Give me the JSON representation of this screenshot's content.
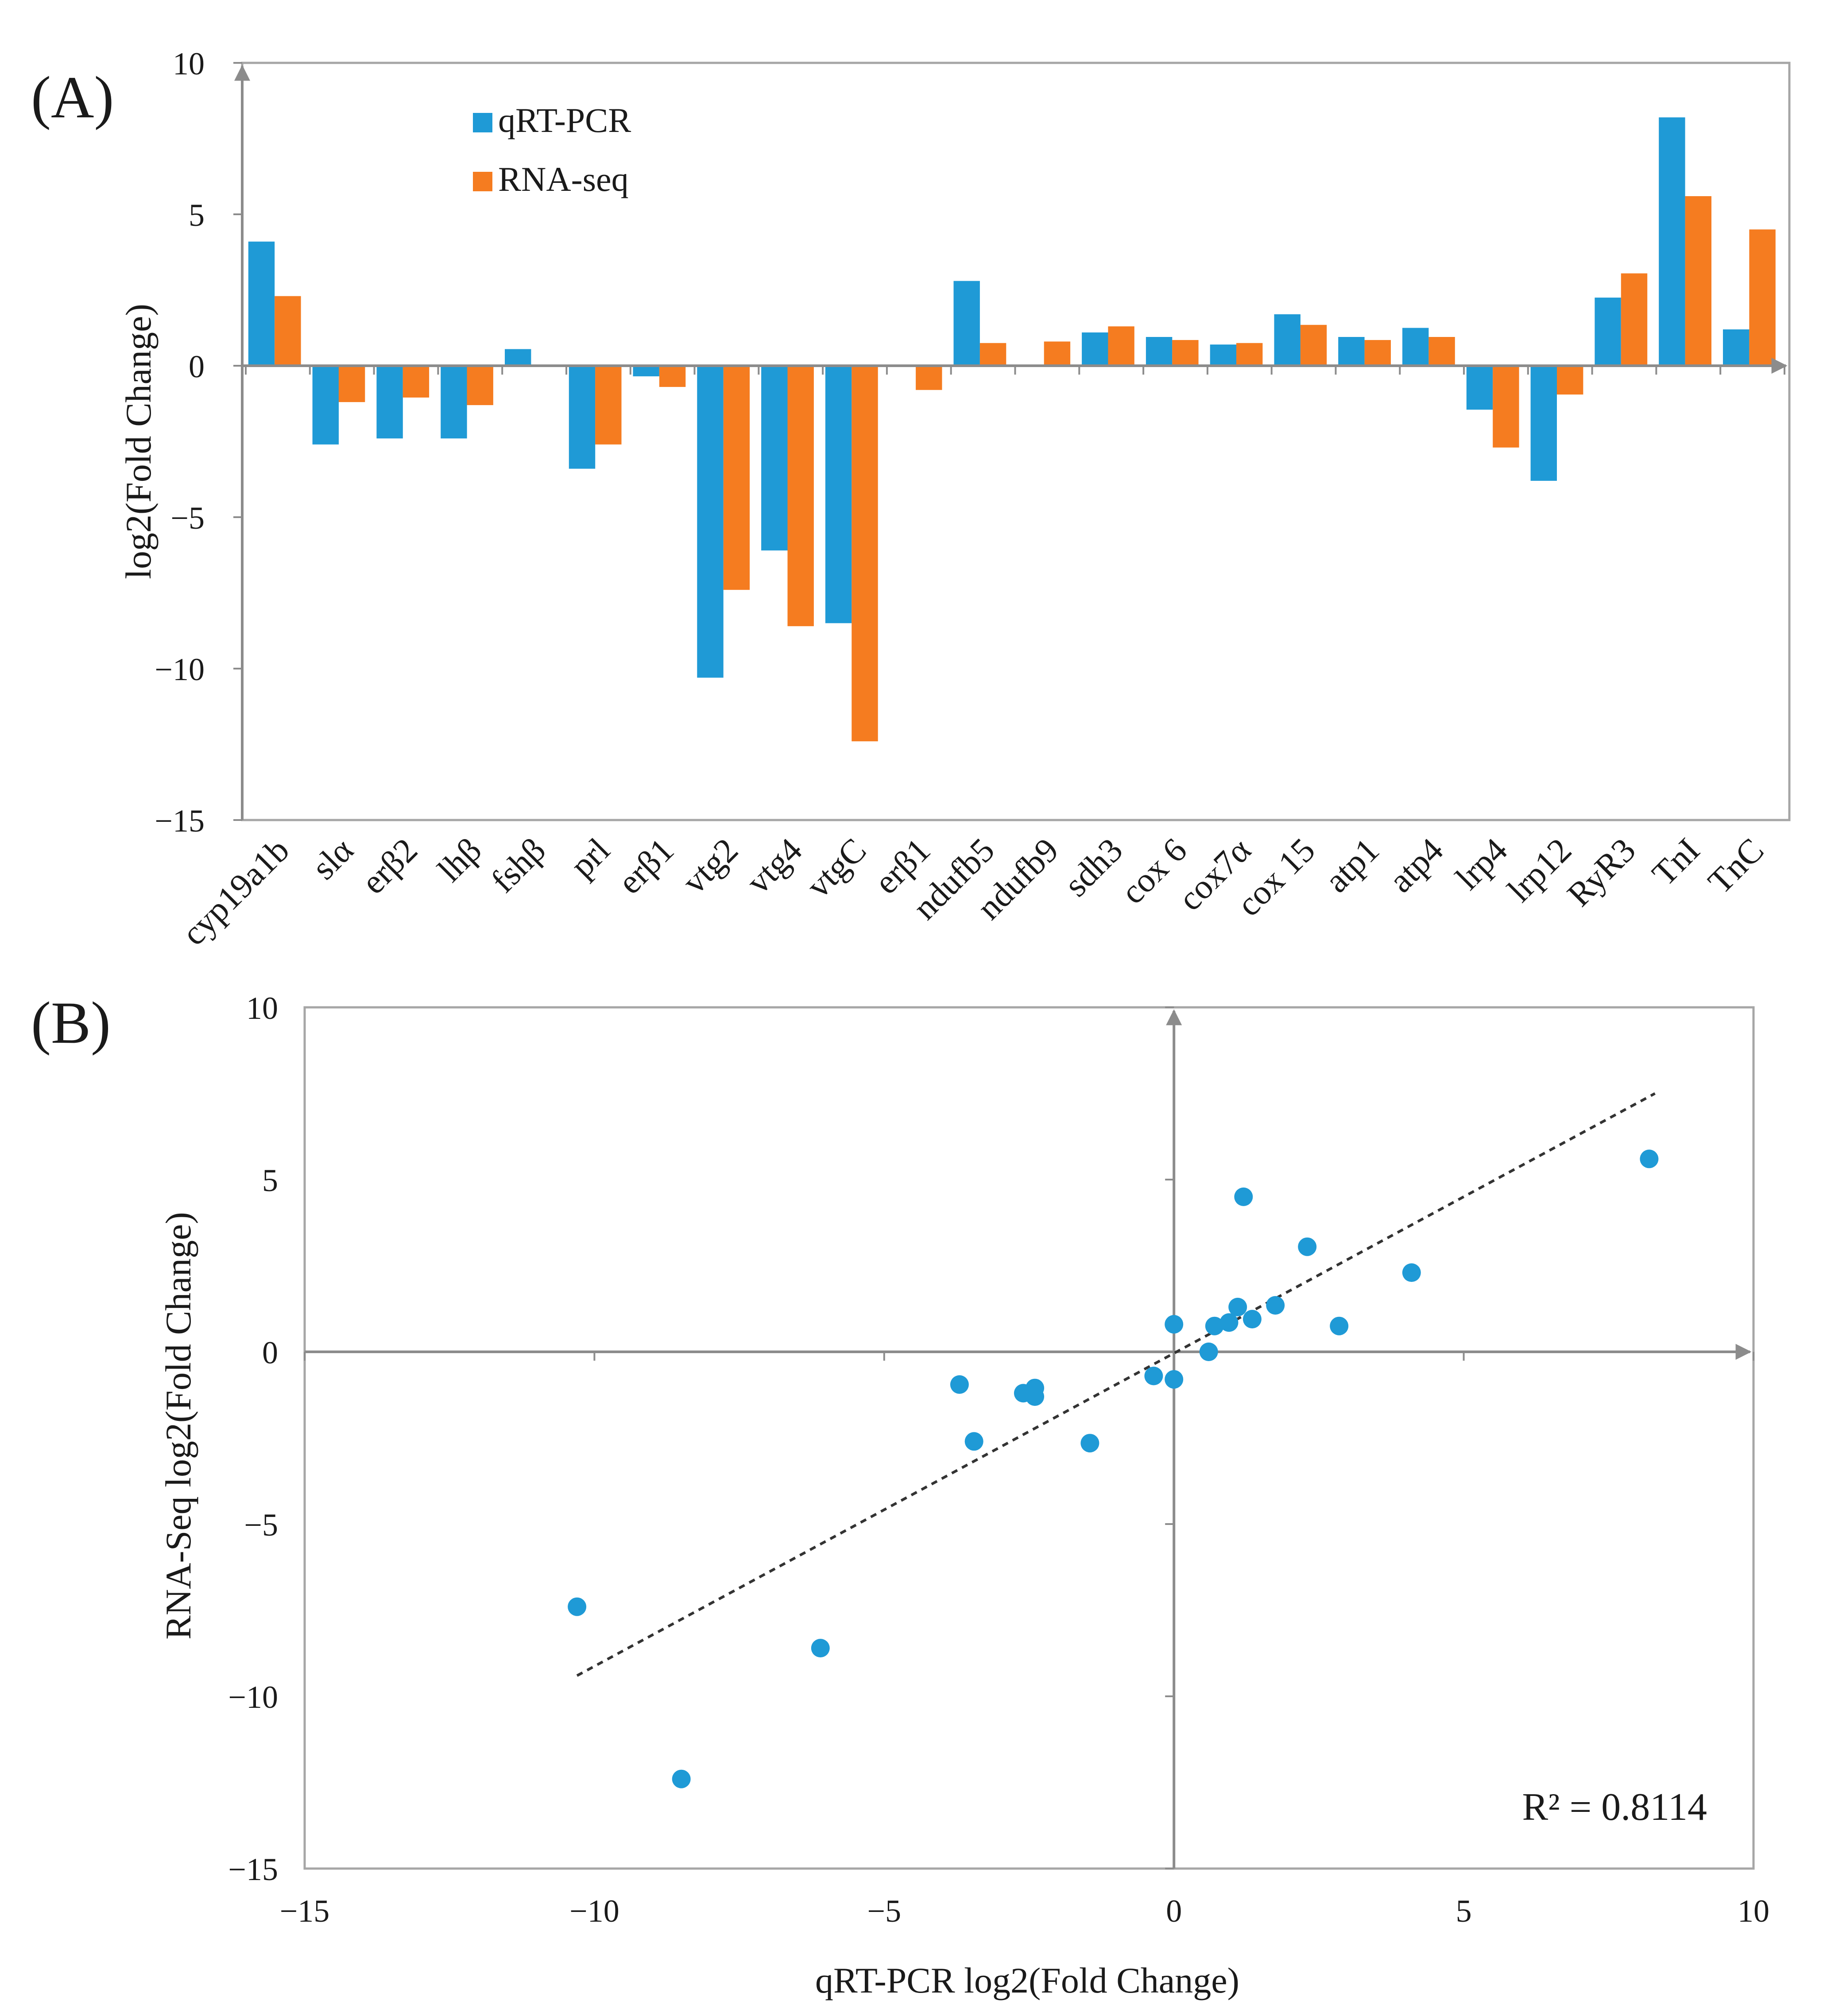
{
  "colors": {
    "qrt": "#1f9ad6",
    "rna": "#f57c20",
    "axis": "#8c8c8c",
    "frame": "#a6a6a6",
    "text": "#1a1a1a"
  },
  "chart_data": [
    {
      "panel": "(A)",
      "type": "bar",
      "title": "",
      "xlabel": "",
      "ylabel": "log2(Fold Change)",
      "ylim": [
        -15,
        10
      ],
      "yticks": [
        10,
        5,
        0,
        -5,
        -10,
        -15
      ],
      "ytick_labels": [
        "10",
        "5",
        "0",
        "−5",
        "−10",
        "−15"
      ],
      "legend_position": "top-left",
      "categories": [
        "cyp19a1b",
        "slα",
        "erβ2",
        "lhβ",
        "fshβ",
        "prl",
        "erβ1",
        "vtg2",
        "vtg4",
        "vtgC",
        "erβ1",
        "ndufb5",
        "ndufb9",
        "sdh3",
        "cox 6",
        "cox7α",
        "cox 15",
        "atp1",
        "atp4",
        "lrp4",
        "lrp12",
        "RyR3",
        "TnI",
        "TnC"
      ],
      "series": [
        {
          "name": "qRT-PCR",
          "color": "#1f9ad6",
          "values": [
            4.1,
            -2.6,
            -2.4,
            -2.4,
            0.55,
            -3.4,
            -0.35,
            -10.3,
            -6.1,
            -8.5,
            0.0,
            2.8,
            0.0,
            1.1,
            0.95,
            0.7,
            1.7,
            0.95,
            1.25,
            -1.45,
            -3.8,
            2.25,
            8.2,
            1.2
          ]
        },
        {
          "name": "RNA-seq",
          "color": "#f57c20",
          "values": [
            2.3,
            -1.2,
            -1.05,
            -1.3,
            0.0,
            -2.6,
            -0.7,
            -7.4,
            -8.6,
            -12.4,
            -0.8,
            0.75,
            0.8,
            1.3,
            0.85,
            0.75,
            1.35,
            0.85,
            0.95,
            -2.7,
            -0.95,
            3.05,
            5.6,
            4.5
          ]
        }
      ]
    },
    {
      "panel": "(B)",
      "type": "scatter",
      "title": "",
      "xlabel": "qRT-PCR log2(Fold Change)",
      "ylabel": "RNA-Seq log2(Fold Change)",
      "xlim": [
        -15,
        10
      ],
      "ylim": [
        -15,
        10
      ],
      "xticks": [
        -15,
        -10,
        -5,
        0,
        5,
        10
      ],
      "xtick_labels": [
        "−15",
        "−10",
        "−5",
        "0",
        "5",
        "10"
      ],
      "yticks": [
        10,
        5,
        0,
        -5,
        -10,
        -15
      ],
      "ytick_labels": [
        "10",
        "5",
        "0",
        "−5",
        "−10",
        "−15"
      ],
      "annotation": "R² = 0.8114",
      "trendline": {
        "x": [
          -10.3,
          8.3
        ],
        "y": [
          -9.4,
          7.5
        ]
      },
      "points": [
        {
          "x": 4.1,
          "y": 2.3
        },
        {
          "x": -2.6,
          "y": -1.2
        },
        {
          "x": -2.4,
          "y": -1.05
        },
        {
          "x": -2.4,
          "y": -1.3
        },
        {
          "x": 0.0,
          "y": 0.8
        },
        {
          "x": -3.45,
          "y": -2.6
        },
        {
          "x": -0.35,
          "y": -0.7
        },
        {
          "x": -10.3,
          "y": -7.4
        },
        {
          "x": -6.1,
          "y": -8.6
        },
        {
          "x": -8.5,
          "y": -12.4
        },
        {
          "x": 0.0,
          "y": -0.8
        },
        {
          "x": 2.85,
          "y": 0.75
        },
        {
          "x": 0.6,
          "y": 0.0
        },
        {
          "x": 1.1,
          "y": 1.3
        },
        {
          "x": 0.95,
          "y": 0.85
        },
        {
          "x": 0.7,
          "y": 0.75
        },
        {
          "x": 1.75,
          "y": 1.35
        },
        {
          "x": 1.35,
          "y": 0.95
        },
        {
          "x": 1.2,
          "y": 4.5
        },
        {
          "x": -1.45,
          "y": -2.65
        },
        {
          "x": -3.7,
          "y": -0.95
        },
        {
          "x": 2.3,
          "y": 3.05
        },
        {
          "x": 8.2,
          "y": 5.6
        }
      ]
    }
  ]
}
